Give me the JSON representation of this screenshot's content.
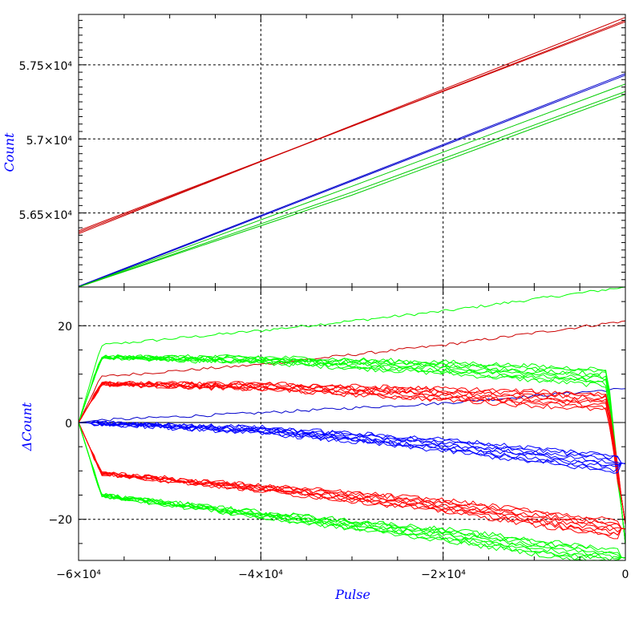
{
  "chart_data": [
    {
      "type": "line",
      "panel": "top",
      "ylabel": "Count",
      "xlabel": "",
      "xlim": [
        -60000,
        0
      ],
      "ylim": [
        56000,
        57840
      ],
      "grid": true,
      "x_ticks": [
        -60000,
        -40000,
        -20000,
        0
      ],
      "y_ticks": [
        56500,
        57000,
        57500
      ],
      "y_tick_labels": [
        "5.65×10⁴",
        "5.7×10⁴",
        "5.75×10⁴"
      ],
      "series": [
        {
          "color": "#cc0000",
          "x": [
            -60000,
            0
          ],
          "y": [
            56360,
            57820
          ]
        },
        {
          "color": "#cc0000",
          "x": [
            -60000,
            0
          ],
          "y": [
            56370,
            57800
          ]
        },
        {
          "color": "#cc0000",
          "x": [
            -60000,
            0
          ],
          "y": [
            56380,
            57790
          ]
        },
        {
          "color": "#0000cc",
          "x": [
            -60000,
            0
          ],
          "y": [
            56000,
            57430
          ]
        },
        {
          "color": "#0000cc",
          "x": [
            -60000,
            0
          ],
          "y": [
            56005,
            57440
          ]
        },
        {
          "color": "#00cc00",
          "x": [
            -60000,
            0
          ],
          "y": [
            55960,
            57320
          ]
        },
        {
          "color": "#00cc00",
          "x": [
            -60000,
            0
          ],
          "y": [
            55990,
            57370
          ]
        },
        {
          "color": "#00cc00",
          "x": [
            -60000,
            0
          ],
          "y": [
            55940,
            57300
          ]
        }
      ]
    },
    {
      "type": "line",
      "panel": "bottom",
      "ylabel": "ΔCount",
      "xlabel": "Pulse",
      "xlim": [
        -60000,
        0
      ],
      "ylim": [
        -28.5,
        28
      ],
      "grid": true,
      "x_ticks": [
        -60000,
        -40000,
        -20000,
        0
      ],
      "x_tick_labels": [
        "−6×10⁴",
        "−4×10⁴",
        "−2×10⁴",
        "0"
      ],
      "y_ticks": [
        -20,
        0,
        20
      ],
      "y_tick_labels": [
        "−20",
        "0",
        "20"
      ],
      "series": [
        {
          "color": "#00ff00",
          "style": "drift-up",
          "x": [
            -60000,
            -57500,
            -40000,
            -20000,
            0
          ],
          "y": [
            0,
            16,
            19,
            23,
            28
          ]
        },
        {
          "color": "#cc0000",
          "style": "drift-up",
          "x": [
            -60000,
            -57500,
            -40000,
            -20000,
            0
          ],
          "y": [
            0,
            9.5,
            12,
            16,
            21
          ]
        },
        {
          "color": "#0000cc",
          "style": "drift-up",
          "x": [
            -60000,
            -57500,
            -40000,
            -20000,
            0
          ],
          "y": [
            0,
            0.5,
            2,
            4,
            7
          ]
        },
        {
          "color": "#00ff00",
          "style": "upper-bundle",
          "x": [
            -60000,
            -57500,
            -40000,
            -20000,
            -2000,
            0
          ],
          "y": [
            0,
            13.5,
            13,
            11.5,
            9.5,
            -25
          ]
        },
        {
          "color": "#ff0000",
          "style": "upper-bundle",
          "x": [
            -60000,
            -57500,
            -40000,
            -20000,
            -2000,
            0
          ],
          "y": [
            0,
            8,
            7.5,
            6,
            4.5,
            -21
          ]
        },
        {
          "color": "#0000ff",
          "style": "bundle",
          "x": [
            -60000,
            -40000,
            -20000,
            0
          ],
          "y": [
            0,
            -1.5,
            -4.5,
            -8.5
          ]
        },
        {
          "color": "#ff0000",
          "style": "lower-bundle",
          "x": [
            -60000,
            -57500,
            -40000,
            -20000,
            0
          ],
          "y": [
            0,
            -10.5,
            -13.5,
            -17,
            -22
          ]
        },
        {
          "color": "#00ff00",
          "style": "lower-bundle",
          "x": [
            -60000,
            -57500,
            -40000,
            -20000,
            0
          ],
          "y": [
            0,
            -15,
            -19,
            -23,
            -28
          ]
        }
      ]
    }
  ],
  "axes": {
    "top_ylabel": "Count",
    "bottom_ylabel": "ΔCount",
    "xlabel": "Pulse",
    "x_tick_labels": [
      "−6×10⁴",
      "−4×10⁴",
      "−2×10⁴",
      "0"
    ],
    "top_y_tick_labels": [
      "5.65×10⁴",
      "5.7×10⁴",
      "5.75×10⁴"
    ],
    "bottom_y_tick_labels": [
      "−20",
      "0",
      "20"
    ]
  },
  "colors": {
    "axis_title": "#0000ff",
    "grid": "#000000"
  }
}
